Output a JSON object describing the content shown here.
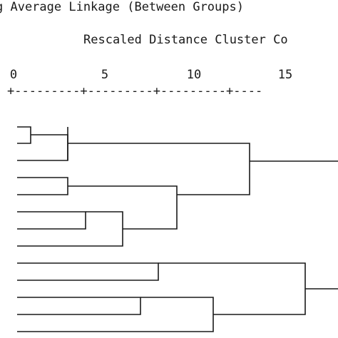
{
  "title": "g Average Linkage (Between Groups)",
  "subtitle": "Rescaled Distance Cluster Co",
  "scale_ticks": [
    "0",
    "5",
    "10",
    "15"
  ],
  "scale_line": "+---------+---------+---------+----",
  "line_color": "#1a1a1a"
}
